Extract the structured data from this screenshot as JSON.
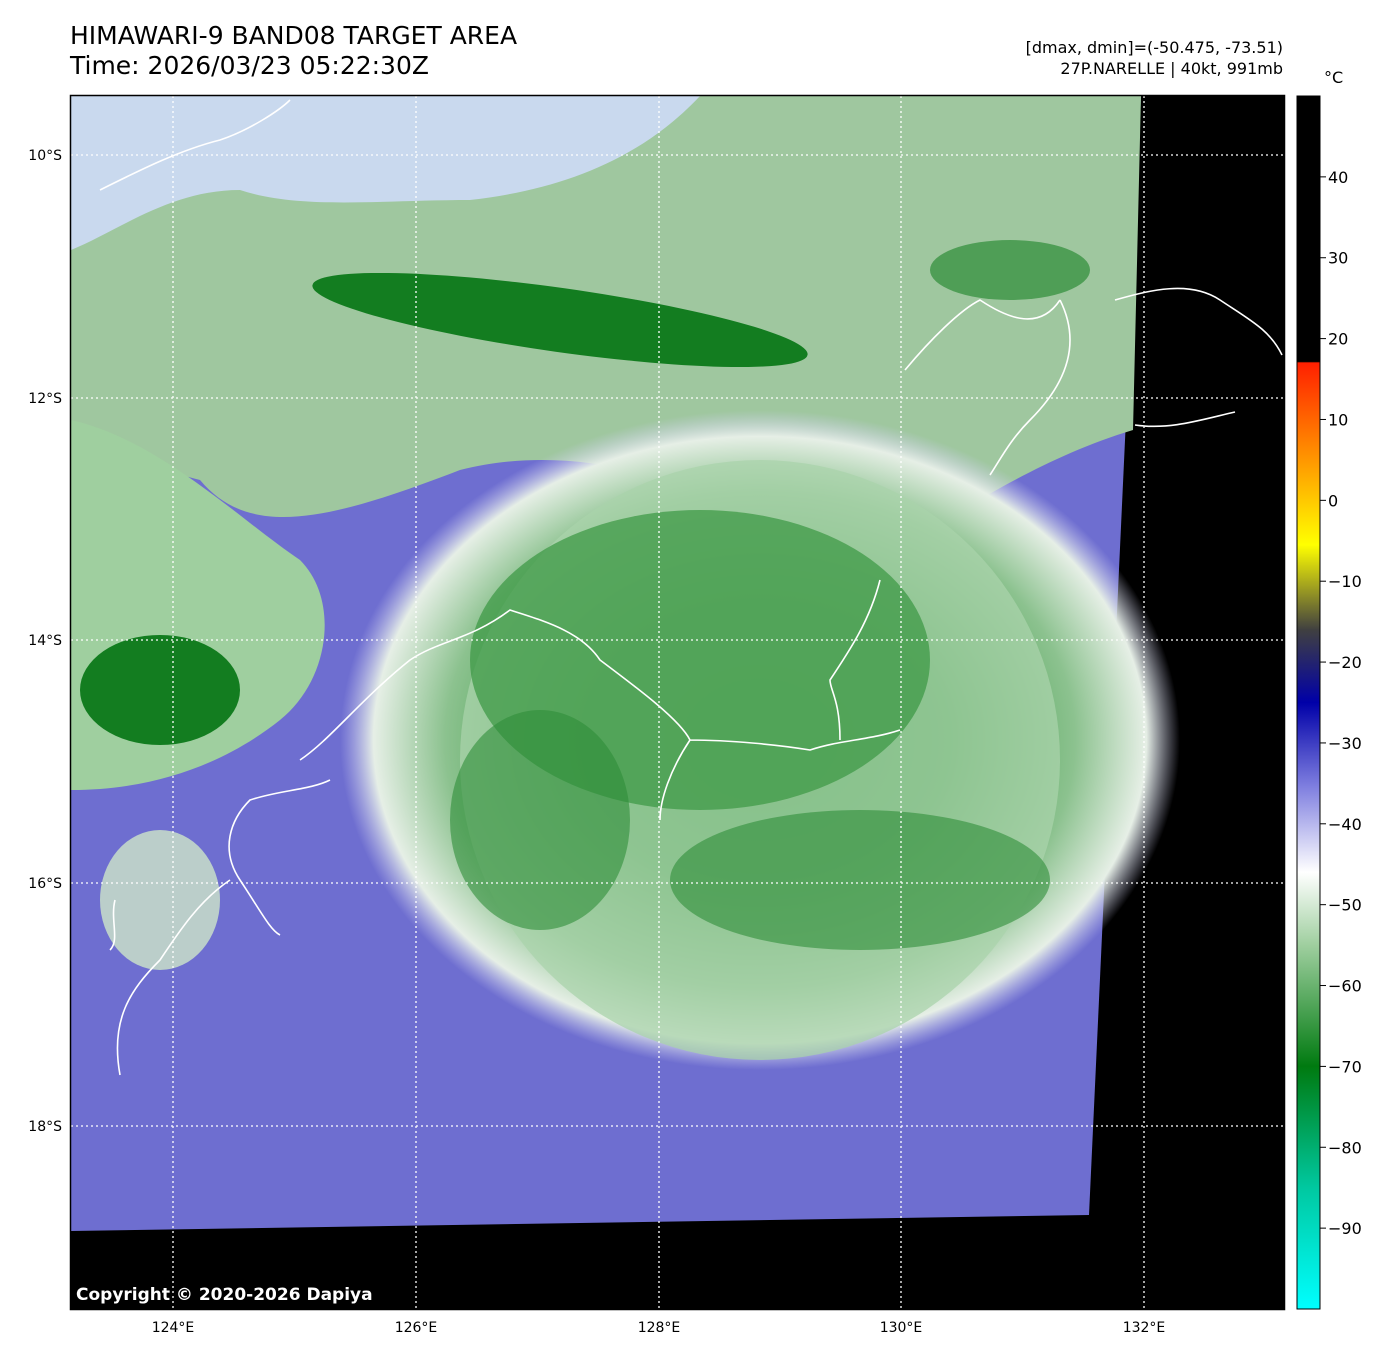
{
  "header": {
    "title_line1": "HIMAWARI-9 BAND08 TARGET AREA",
    "title_line2": "Time: 2026/03/23 05:22:30Z",
    "info_line1": "[dmax, dmin]=(-50.475, -73.51)",
    "info_line2": "27P.NARELLE | 40kt, 991mb"
  },
  "map": {
    "lat_labels": [
      "10°S",
      "12°S",
      "14°S",
      "16°S",
      "18°S"
    ],
    "lon_labels": [
      "124°E",
      "126°E",
      "128°E",
      "130°E",
      "132°E"
    ],
    "copyright": "Copyright © 2020-2026 Dapiya",
    "colors": {
      "background_black": "#000000",
      "cold_cloud_green": "#0d7a18",
      "mid_green": "#6fb074",
      "pale": "#e8f0e8",
      "clear_purple": "#6e6ed0",
      "coastline": "#ffffff"
    }
  },
  "colorbar": {
    "unit": "°C",
    "tick_labels": [
      "40",
      "30",
      "20",
      "10",
      "0",
      "−10",
      "−20",
      "−30",
      "−40",
      "−50",
      "−60",
      "−70",
      "−80",
      "−90"
    ],
    "tick_values": [
      40,
      30,
      20,
      10,
      0,
      -10,
      -20,
      -30,
      -40,
      -50,
      -60,
      -70,
      -80,
      -90
    ],
    "range": [
      -100,
      50
    ]
  }
}
